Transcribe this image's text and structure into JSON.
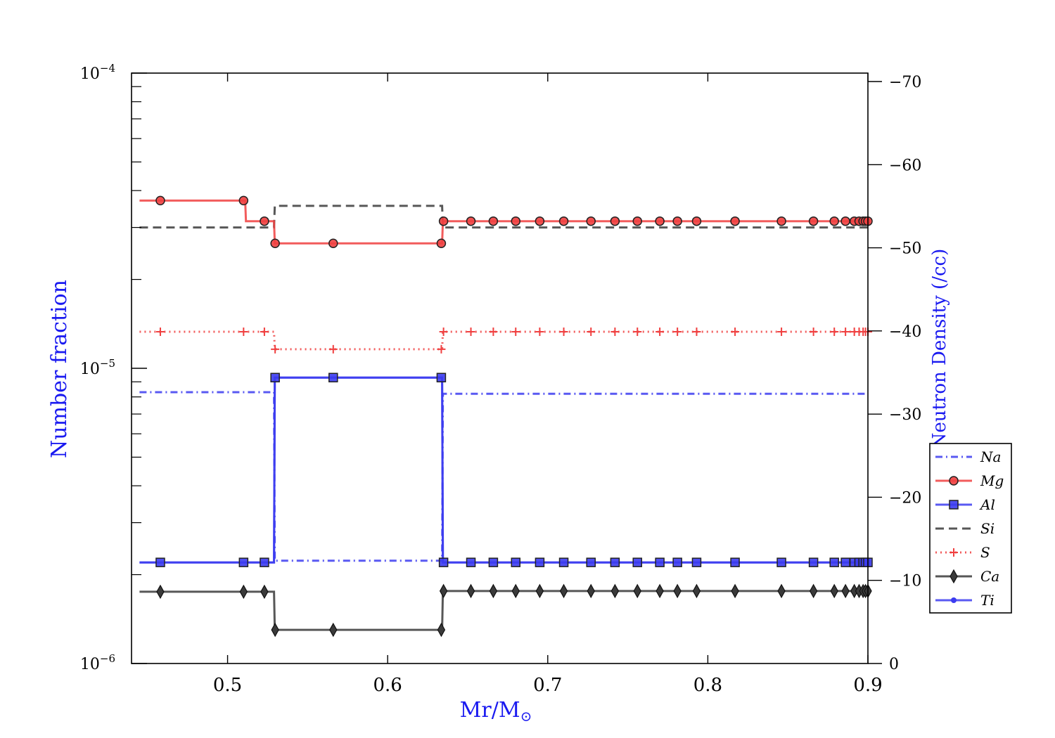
{
  "chart_data": {
    "type": "line",
    "xlabel": "Mr/M",
    "xlabel_symbol": "⊙",
    "ylabel": "Number fraction",
    "y2label": "Log Neutron Density (/cc)",
    "xlim": [
      0.44,
      0.9
    ],
    "ylim": [
      1e-06,
      0.0001
    ],
    "yscale": "log",
    "y2lim": [
      0,
      -70
    ],
    "xticks": [
      "0.5",
      "0.6",
      "0.7",
      "0.8",
      "0.9"
    ],
    "xtick_values": [
      0.5,
      0.6,
      0.7,
      0.8,
      0.9
    ],
    "yticks": [
      {
        "base": "10",
        "exp": "−4",
        "value": 0.0001
      },
      {
        "base": "10",
        "exp": "−5",
        "value": 1e-05
      },
      {
        "base": "10",
        "exp": "−6",
        "value": 1e-06
      }
    ],
    "y2ticks": [
      "−70",
      "−60",
      "−50",
      "−40",
      "−30",
      "−20",
      "−10",
      "0"
    ],
    "y2tick_values": [
      -70,
      -60,
      -50,
      -40,
      -30,
      -20,
      -10,
      0
    ],
    "legend_position": "lower-right, outside axes",
    "grid": false,
    "colors": {
      "blue": "#3c3cf0",
      "red": "#f04040",
      "black": "#3a3a3a",
      "label_blue": "#1a1af0"
    },
    "x": [
      0.445,
      0.458,
      0.51,
      0.5103,
      0.523,
      0.5297,
      0.53,
      0.566,
      0.6335,
      0.6349,
      0.652,
      0.666,
      0.68,
      0.695,
      0.71,
      0.727,
      0.742,
      0.756,
      0.77,
      0.781,
      0.793,
      0.817,
      0.846,
      0.866,
      0.879,
      0.886,
      0.8915,
      0.8945,
      0.897,
      0.8985,
      0.9
    ],
    "series": [
      {
        "name": "Na",
        "style": "dashdot",
        "marker": "none",
        "color": "#3c3cf0",
        "steps": [
          [
            0.445,
            8.3e-06
          ],
          [
            0.529,
            8.3e-06
          ],
          [
            0.5295,
            2.23e-06
          ],
          [
            0.634,
            2.23e-06
          ],
          [
            0.6345,
            8.2e-06
          ],
          [
            0.9,
            8.2e-06
          ]
        ]
      },
      {
        "name": "Mg",
        "style": "solid",
        "marker": "circle",
        "color": "#f04040",
        "steps": [
          [
            0.445,
            3.7e-05
          ],
          [
            0.511,
            3.7e-05
          ],
          [
            0.5115,
            3.15e-05
          ],
          [
            0.529,
            3.15e-05
          ],
          [
            0.5295,
            2.65e-05
          ],
          [
            0.634,
            2.65e-05
          ],
          [
            0.6345,
            3.15e-05
          ],
          [
            0.9,
            3.15e-05
          ]
        ],
        "marker_values": [
          [
            0.458,
            3.7e-05
          ],
          [
            0.51,
            3.7e-05
          ],
          [
            0.523,
            3.15e-05
          ],
          [
            0.5297,
            2.65e-05
          ],
          [
            0.566,
            2.65e-05
          ],
          [
            0.6335,
            2.65e-05
          ],
          [
            0.6349,
            3.15e-05
          ],
          [
            0.652,
            3.15e-05
          ],
          [
            0.666,
            3.15e-05
          ],
          [
            0.68,
            3.15e-05
          ],
          [
            0.695,
            3.15e-05
          ],
          [
            0.71,
            3.15e-05
          ],
          [
            0.727,
            3.15e-05
          ],
          [
            0.742,
            3.15e-05
          ],
          [
            0.756,
            3.15e-05
          ],
          [
            0.77,
            3.15e-05
          ],
          [
            0.781,
            3.15e-05
          ],
          [
            0.793,
            3.15e-05
          ],
          [
            0.817,
            3.15e-05
          ],
          [
            0.846,
            3.15e-05
          ],
          [
            0.866,
            3.15e-05
          ],
          [
            0.879,
            3.15e-05
          ],
          [
            0.886,
            3.15e-05
          ],
          [
            0.8915,
            3.15e-05
          ],
          [
            0.8945,
            3.15e-05
          ],
          [
            0.897,
            3.15e-05
          ],
          [
            0.8985,
            3.15e-05
          ],
          [
            0.9,
            3.15e-05
          ]
        ]
      },
      {
        "name": "Al",
        "style": "solid",
        "marker": "square",
        "color": "#3c3cf0",
        "steps": [
          [
            0.445,
            2.2e-06
          ],
          [
            0.529,
            2.2e-06
          ],
          [
            0.5295,
            9.3e-06
          ],
          [
            0.634,
            9.3e-06
          ],
          [
            0.6345,
            2.2e-06
          ],
          [
            0.9,
            2.2e-06
          ]
        ],
        "marker_values": [
          [
            0.458,
            2.2e-06
          ],
          [
            0.51,
            2.2e-06
          ],
          [
            0.523,
            2.2e-06
          ],
          [
            0.5297,
            9.3e-06
          ],
          [
            0.566,
            9.3e-06
          ],
          [
            0.6335,
            9.3e-06
          ],
          [
            0.6349,
            2.2e-06
          ],
          [
            0.652,
            2.2e-06
          ],
          [
            0.666,
            2.2e-06
          ],
          [
            0.68,
            2.2e-06
          ],
          [
            0.695,
            2.2e-06
          ],
          [
            0.71,
            2.2e-06
          ],
          [
            0.727,
            2.2e-06
          ],
          [
            0.742,
            2.2e-06
          ],
          [
            0.756,
            2.2e-06
          ],
          [
            0.77,
            2.2e-06
          ],
          [
            0.781,
            2.2e-06
          ],
          [
            0.793,
            2.2e-06
          ],
          [
            0.817,
            2.2e-06
          ],
          [
            0.846,
            2.2e-06
          ],
          [
            0.866,
            2.2e-06
          ],
          [
            0.879,
            2.2e-06
          ],
          [
            0.886,
            2.2e-06
          ],
          [
            0.8915,
            2.2e-06
          ],
          [
            0.8945,
            2.2e-06
          ],
          [
            0.897,
            2.2e-06
          ],
          [
            0.8985,
            2.2e-06
          ],
          [
            0.9,
            2.2e-06
          ]
        ]
      },
      {
        "name": "Si",
        "style": "dashed",
        "marker": "none",
        "color": "#3a3a3a",
        "steps": [
          [
            0.445,
            3e-05
          ],
          [
            0.529,
            3e-05
          ],
          [
            0.5295,
            3.55e-05
          ],
          [
            0.634,
            3.55e-05
          ],
          [
            0.6345,
            3e-05
          ],
          [
            0.9,
            3e-05
          ]
        ]
      },
      {
        "name": "S",
        "style": "dotted",
        "marker": "plus",
        "color": "#f04040",
        "steps": [
          [
            0.445,
            1.33e-05
          ],
          [
            0.529,
            1.33e-05
          ],
          [
            0.5295,
            1.16e-05
          ],
          [
            0.634,
            1.16e-05
          ],
          [
            0.6345,
            1.33e-05
          ],
          [
            0.9,
            1.33e-05
          ]
        ],
        "marker_values": [
          [
            0.458,
            1.33e-05
          ],
          [
            0.51,
            1.33e-05
          ],
          [
            0.523,
            1.33e-05
          ],
          [
            0.5297,
            1.16e-05
          ],
          [
            0.566,
            1.16e-05
          ],
          [
            0.6335,
            1.16e-05
          ],
          [
            0.6349,
            1.33e-05
          ],
          [
            0.652,
            1.33e-05
          ],
          [
            0.666,
            1.33e-05
          ],
          [
            0.68,
            1.33e-05
          ],
          [
            0.695,
            1.33e-05
          ],
          [
            0.71,
            1.33e-05
          ],
          [
            0.727,
            1.33e-05
          ],
          [
            0.742,
            1.33e-05
          ],
          [
            0.756,
            1.33e-05
          ],
          [
            0.77,
            1.33e-05
          ],
          [
            0.781,
            1.33e-05
          ],
          [
            0.793,
            1.33e-05
          ],
          [
            0.817,
            1.33e-05
          ],
          [
            0.846,
            1.33e-05
          ],
          [
            0.866,
            1.33e-05
          ],
          [
            0.879,
            1.33e-05
          ],
          [
            0.886,
            1.33e-05
          ],
          [
            0.8915,
            1.33e-05
          ],
          [
            0.8945,
            1.33e-05
          ],
          [
            0.897,
            1.33e-05
          ],
          [
            0.8985,
            1.33e-05
          ],
          [
            0.9,
            1.33e-05
          ]
        ]
      },
      {
        "name": "Ca",
        "style": "solid",
        "marker": "diamond",
        "color": "#3a3a3a",
        "steps": [
          [
            0.445,
            1.75e-06
          ],
          [
            0.529,
            1.75e-06
          ],
          [
            0.5295,
            1.3e-06
          ],
          [
            0.634,
            1.3e-06
          ],
          [
            0.6345,
            1.76e-06
          ],
          [
            0.9,
            1.76e-06
          ]
        ],
        "marker_values": [
          [
            0.458,
            1.75e-06
          ],
          [
            0.51,
            1.75e-06
          ],
          [
            0.523,
            1.75e-06
          ],
          [
            0.5297,
            1.3e-06
          ],
          [
            0.566,
            1.3e-06
          ],
          [
            0.6335,
            1.3e-06
          ],
          [
            0.6349,
            1.76e-06
          ],
          [
            0.652,
            1.76e-06
          ],
          [
            0.666,
            1.76e-06
          ],
          [
            0.68,
            1.76e-06
          ],
          [
            0.695,
            1.76e-06
          ],
          [
            0.71,
            1.76e-06
          ],
          [
            0.727,
            1.76e-06
          ],
          [
            0.742,
            1.76e-06
          ],
          [
            0.756,
            1.76e-06
          ],
          [
            0.77,
            1.76e-06
          ],
          [
            0.781,
            1.76e-06
          ],
          [
            0.793,
            1.76e-06
          ],
          [
            0.817,
            1.76e-06
          ],
          [
            0.846,
            1.76e-06
          ],
          [
            0.866,
            1.76e-06
          ],
          [
            0.879,
            1.76e-06
          ],
          [
            0.886,
            1.76e-06
          ],
          [
            0.8915,
            1.76e-06
          ],
          [
            0.8945,
            1.76e-06
          ],
          [
            0.897,
            1.76e-06
          ],
          [
            0.8985,
            1.76e-06
          ],
          [
            0.9,
            1.76e-06
          ]
        ]
      },
      {
        "name": "Ti",
        "style": "solid",
        "marker": "dot",
        "color": "#3c3cf0",
        "steps": [
          [
            0.445,
            2.2e-06
          ],
          [
            0.529,
            2.2e-06
          ],
          [
            0.5295,
            9.3e-06
          ],
          [
            0.634,
            9.3e-06
          ],
          [
            0.6345,
            2.2e-06
          ],
          [
            0.9,
            2.2e-06
          ]
        ]
      }
    ]
  }
}
